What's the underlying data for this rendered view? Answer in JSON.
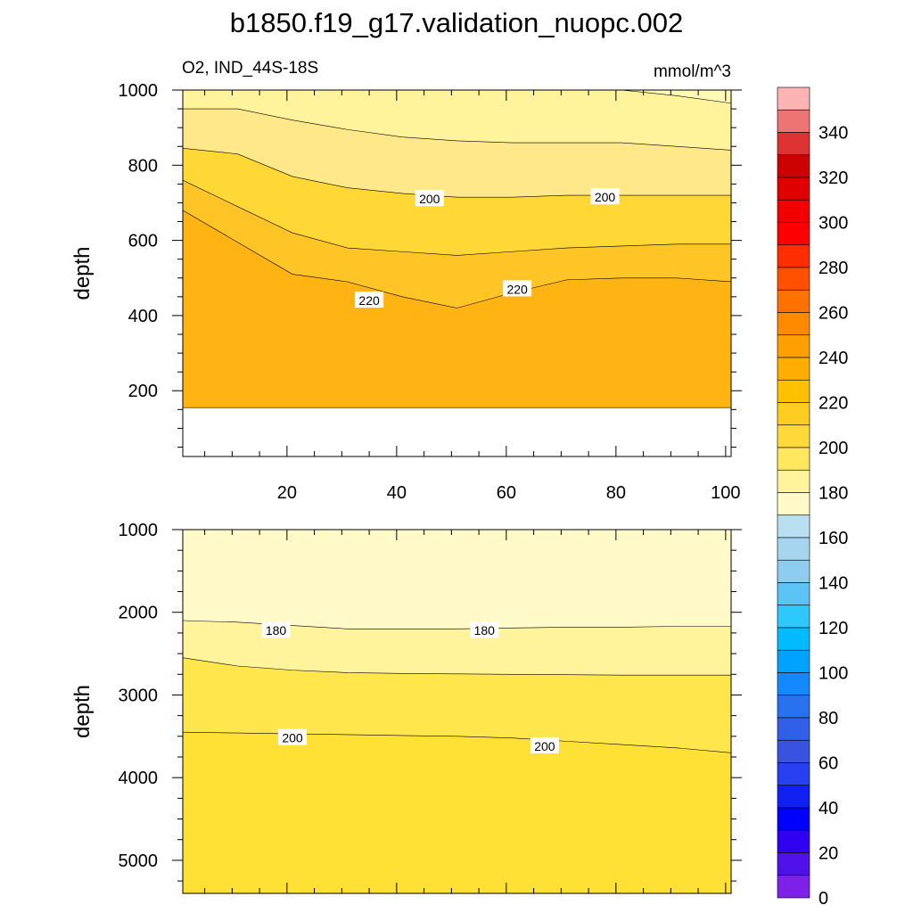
{
  "title": "b1850.f19_g17.validation_nuopc.002",
  "subtitle_left": "O2, IND_44S-18S",
  "subtitle_right": "mmol/m^3",
  "colors": {
    "frame": "#000000",
    "contour_line": "#000000",
    "label_box": "#ffffff"
  },
  "chart_data": [
    {
      "type": "heatmap",
      "panel": "upper",
      "ylabel": "depth",
      "xlabel": "",
      "xlim": [
        1,
        101
      ],
      "ylim": [
        1000,
        25
      ],
      "x_ticks": [
        20,
        40,
        60,
        80,
        100
      ],
      "y_ticks": [
        200,
        400,
        600,
        800,
        1000
      ],
      "bands": [
        {
          "fill": "#FFA500",
          "upper_bound": "top",
          "lower_bound_depths": [
            155,
            155,
            155,
            155,
            155,
            155,
            155,
            155,
            155,
            155,
            155
          ]
        },
        {
          "fill": "#FFB414",
          "lower_bound_depths": [
            680,
            595,
            510,
            490,
            450,
            420,
            460,
            495,
            500,
            500,
            490
          ]
        },
        {
          "fill": "#FFC425",
          "lower_bound_depths": [
            760,
            690,
            620,
            580,
            570,
            560,
            570,
            580,
            585,
            590,
            590
          ]
        },
        {
          "fill": "#FFD835",
          "lower_bound_depths": [
            845,
            830,
            770,
            740,
            725,
            715,
            715,
            720,
            720,
            720,
            720
          ]
        },
        {
          "fill": "#FFE88A",
          "lower_bound_depths": [
            950,
            950,
            920,
            895,
            875,
            865,
            860,
            860,
            860,
            850,
            840
          ]
        },
        {
          "fill": "#FFF39C",
          "lower_bound_depths": [
            1000,
            1000,
            1000,
            1000,
            1000,
            1000,
            1000,
            1000,
            1000,
            985,
            965
          ]
        },
        {
          "fill": "#FFFAB4",
          "lower_bound_depths": [
            1000,
            1000,
            1000,
            1000,
            1000,
            1000,
            1000,
            1000,
            1000,
            1000,
            1000
          ]
        }
      ],
      "x_nodes": [
        1,
        11,
        21,
        31,
        41,
        51,
        61,
        71,
        81,
        91,
        101
      ],
      "contour_labels": [
        {
          "text": "220",
          "x": 35,
          "depth": 440
        },
        {
          "text": "220",
          "x": 62,
          "depth": 470
        },
        {
          "text": "200",
          "x": 46,
          "depth": 710
        },
        {
          "text": "200",
          "x": 78,
          "depth": 715
        }
      ]
    },
    {
      "type": "heatmap",
      "panel": "lower",
      "ylabel": "depth",
      "xlabel": "",
      "xlim": [
        1,
        101
      ],
      "ylim": [
        1000,
        5400
      ],
      "y_ticks": [
        1000,
        2000,
        3000,
        4000,
        5000
      ],
      "bands": [
        {
          "fill": "#FFFAC8",
          "lower_bound_depths": [
            2100,
            2120,
            2160,
            2200,
            2200,
            2200,
            2190,
            2180,
            2180,
            2170,
            2170
          ]
        },
        {
          "fill": "#FFF39C",
          "lower_bound_depths": [
            2550,
            2650,
            2700,
            2730,
            2740,
            2745,
            2750,
            2755,
            2760,
            2760,
            2760
          ]
        },
        {
          "fill": "#FFE64D",
          "lower_bound_depths": [
            3450,
            3460,
            3470,
            3480,
            3490,
            3500,
            3520,
            3560,
            3600,
            3640,
            3700
          ]
        },
        {
          "fill": "#FFE035",
          "lower_bound_depths": [
            5400,
            5400,
            5400,
            5400,
            5400,
            5400,
            5400,
            5400,
            5400,
            5400,
            5400
          ]
        }
      ],
      "x_nodes": [
        1,
        11,
        21,
        31,
        41,
        51,
        61,
        71,
        81,
        91,
        101
      ],
      "contour_labels": [
        {
          "text": "180",
          "x": 18,
          "depth": 2220
        },
        {
          "text": "180",
          "x": 56,
          "depth": 2220
        },
        {
          "text": "200",
          "x": 21,
          "depth": 3520
        },
        {
          "text": "200",
          "x": 67,
          "depth": 3620
        }
      ]
    }
  ],
  "colorbar": {
    "tick_labels": [
      "340",
      "320",
      "300",
      "280",
      "260",
      "240",
      "220",
      "200",
      "180",
      "160",
      "140",
      "120",
      "100",
      "80",
      "60",
      "40",
      "20",
      "0"
    ],
    "colors": [
      "#FFB4B4",
      "#EE7373",
      "#DD3333",
      "#CC0000",
      "#E10000",
      "#F20000",
      "#FF0000",
      "#FF2E00",
      "#FF5000",
      "#FF7200",
      "#FF8A00",
      "#FFA000",
      "#FFAE00",
      "#FFC000",
      "#FFCD20",
      "#FFD83A",
      "#FFE860",
      "#FFF39C",
      "#FFFAC8",
      "#B8E0F0",
      "#A6D6EF",
      "#8ECDF0",
      "#5CC4F5",
      "#2EC8FC",
      "#00BCFF",
      "#00A2FF",
      "#1488FF",
      "#2872F0",
      "#3060E8",
      "#3A52E0",
      "#2840F0",
      "#1020F0",
      "#0000FF",
      "#3000F0",
      "#5010E8",
      "#7D20E8"
    ]
  }
}
